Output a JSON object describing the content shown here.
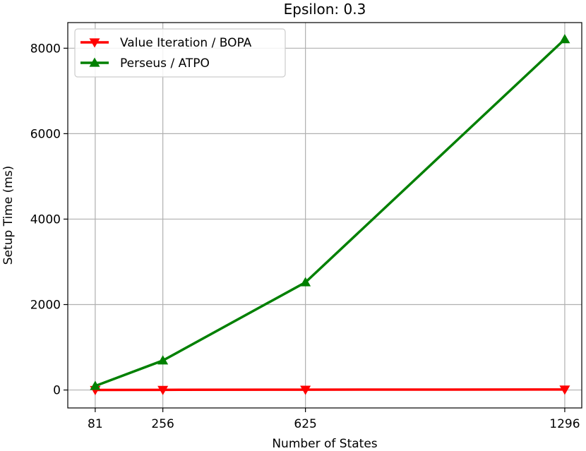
{
  "chart_data": {
    "type": "line",
    "title": "Epsilon: 0.3",
    "xlabel": "Number of States",
    "ylabel": "Setup Time (ms)",
    "x": [
      81,
      256,
      625,
      1296
    ],
    "x_tick_labels": [
      "81",
      "256",
      "625",
      "1296"
    ],
    "xlim": [
      10,
      1340
    ],
    "ylim": [
      -420,
      8600
    ],
    "y_ticks": [
      0,
      2000,
      4000,
      6000,
      8000
    ],
    "y_tick_labels": [
      "0",
      "2000",
      "4000",
      "6000",
      "8000"
    ],
    "grid": true,
    "legend_position": "top-left",
    "series": [
      {
        "name": "Value Iteration / BOPA",
        "color": "#ff0000",
        "marker": "triangle-down",
        "values": [
          2,
          4,
          8,
          12
        ]
      },
      {
        "name": "Perseus / ATPO",
        "color": "#008000",
        "marker": "triangle-up",
        "values": [
          95,
          690,
          2520,
          8210
        ]
      }
    ]
  }
}
